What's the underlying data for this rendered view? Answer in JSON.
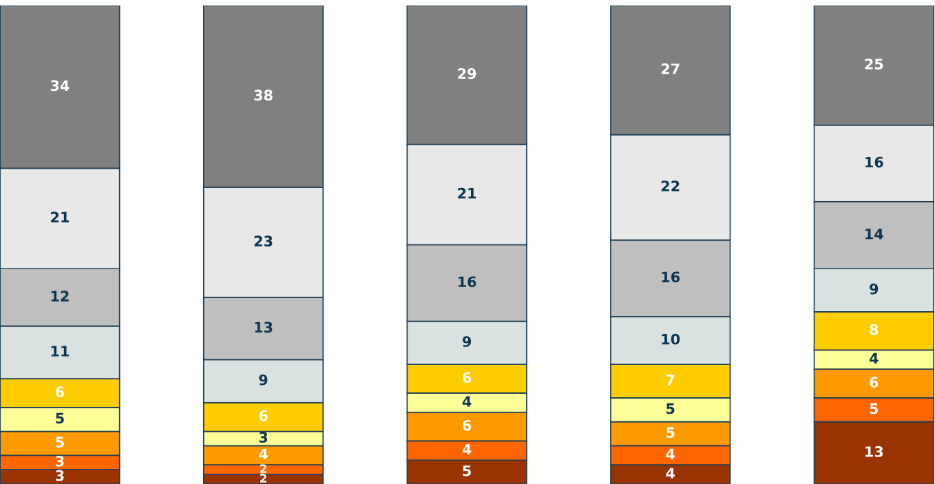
{
  "chart_data": {
    "type": "bar",
    "stacked": true,
    "categories": [
      null,
      null,
      null,
      null,
      null
    ],
    "data_labels": true,
    "series": [
      {
        "color": "#993300",
        "values": [
          3,
          2,
          5,
          4,
          13
        ]
      },
      {
        "color": "#ff6600",
        "values": [
          3,
          2,
          4,
          4,
          5
        ]
      },
      {
        "color": "#ff9900",
        "values": [
          5,
          4,
          6,
          5,
          6
        ]
      },
      {
        "color": "#ffff99",
        "values": [
          5,
          3,
          4,
          5,
          4
        ]
      },
      {
        "color": "#ffcc00",
        "values": [
          6,
          6,
          6,
          7,
          8
        ]
      },
      {
        "color": "#d9e1e1",
        "values": [
          11,
          9,
          9,
          10,
          9
        ]
      },
      {
        "color": "#bfbfbf",
        "values": [
          12,
          13,
          16,
          16,
          14
        ]
      },
      {
        "color": "#e8e8e8",
        "values": [
          21,
          23,
          21,
          22,
          16
        ]
      },
      {
        "color": "#808080",
        "values": [
          34,
          38,
          29,
          27,
          25
        ]
      }
    ]
  }
}
